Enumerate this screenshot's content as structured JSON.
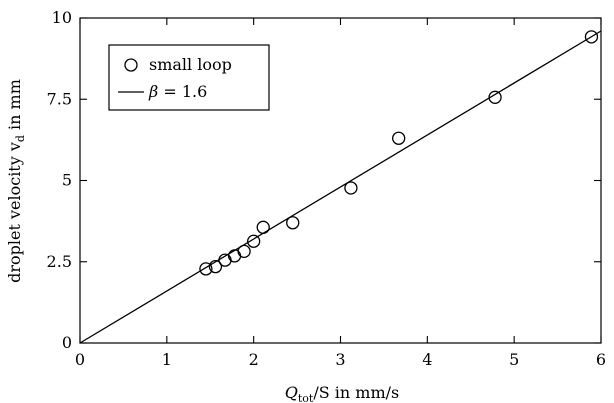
{
  "chart_data": {
    "type": "scatter",
    "title": "",
    "xlabel": "Q_tot/S in mm/s",
    "ylabel": "droplet velocity v_d in mm",
    "xlabel_parts": {
      "q": "Q",
      "sub": "tot",
      "rest": "/S in mm/s"
    },
    "ylabel_parts": {
      "text": "droplet velocity v",
      "sub": "d",
      "rest": " in mm"
    },
    "xlim": [
      0,
      6
    ],
    "ylim": [
      0,
      10
    ],
    "xticks": [
      0,
      1,
      2,
      3,
      4,
      5,
      6
    ],
    "xtick_labels": [
      "0",
      "1",
      "2",
      "3",
      "4",
      "5",
      "6"
    ],
    "yticks": [
      0,
      2.5,
      5,
      7.5,
      10
    ],
    "ytick_labels": [
      "0",
      "2.5",
      "5",
      "7.5",
      "10"
    ],
    "grid": false,
    "legend_position": "top-left",
    "series": [
      {
        "name": "small loop",
        "marker": "open-circle",
        "x": [
          1.45,
          1.56,
          1.67,
          1.78,
          1.89,
          2.0,
          2.11,
          2.45,
          3.12,
          3.67,
          4.78,
          5.89
        ],
        "y": [
          2.28,
          2.35,
          2.55,
          2.68,
          2.82,
          3.13,
          3.56,
          3.7,
          4.77,
          6.3,
          7.56,
          9.42
        ]
      },
      {
        "name": "β = 1.6",
        "legend_label": {
          "symbol": "β",
          "rest": " = 1.6"
        },
        "line": true,
        "x": [
          0,
          6
        ],
        "y": [
          0,
          9.6
        ]
      }
    ]
  }
}
